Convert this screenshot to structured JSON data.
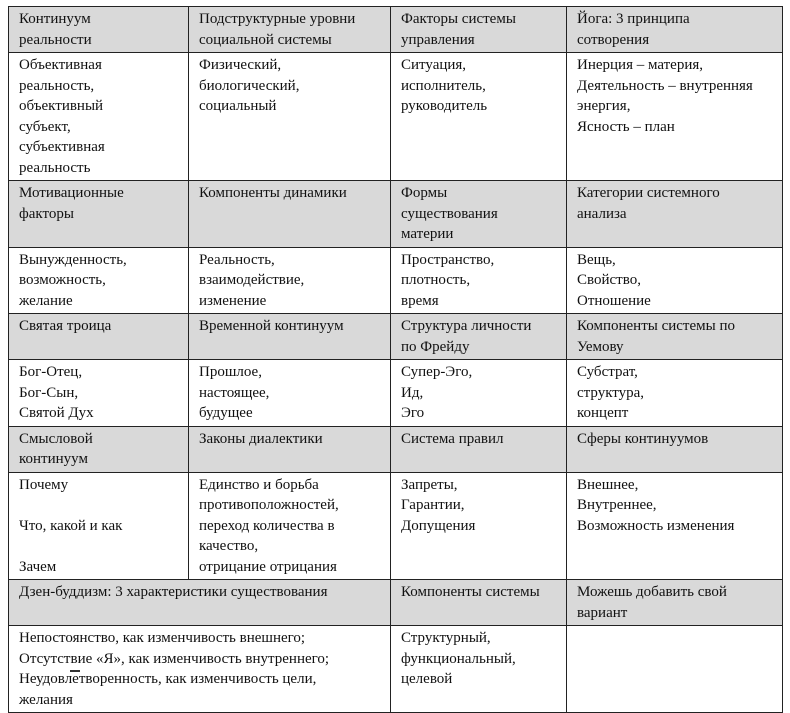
{
  "rows": [
    {
      "type": "header",
      "cells": [
        [
          "Континуум",
          "реальности"
        ],
        [
          "Подструктурные уровни",
          "социальной системы"
        ],
        [
          "Факторы системы",
          "управления"
        ],
        [
          "Йога: 3 принципа",
          "сотворения"
        ]
      ]
    },
    {
      "type": "body",
      "cells": [
        [
          "Объективная",
          "реальность,",
          "объективный",
          "субъект,",
          "субъективная",
          "реальность"
        ],
        [
          "Физический,",
          "биологический,",
          "социальный"
        ],
        [
          "Ситуация,",
          "исполнитель,",
          "руководитель"
        ],
        [
          "Инерция – материя,",
          "Деятельность – внутренняя",
          "энергия,",
          "Ясность – план"
        ]
      ]
    },
    {
      "type": "header",
      "cells": [
        [
          "Мотивационные",
          "факторы"
        ],
        [
          "Компоненты динамики"
        ],
        [
          "Формы",
          "существования",
          "материи"
        ],
        [
          "Категории системного",
          "анализа"
        ]
      ]
    },
    {
      "type": "body",
      "cells": [
        [
          "Вынужденность,",
          "возможность,",
          "желание"
        ],
        [
          "Реальность,",
          "взаимодействие,",
          "изменение"
        ],
        [
          "Пространство,",
          "плотность,",
          "время"
        ],
        [
          "Вещь,",
          "Свойство,",
          "Отношение"
        ]
      ]
    },
    {
      "type": "header",
      "cells": [
        [
          "Святая троица"
        ],
        [
          "Временной континуум"
        ],
        [
          "Структура личности",
          "по Фрейду"
        ],
        [
          "Компоненты системы по",
          "Уемову"
        ]
      ]
    },
    {
      "type": "body",
      "cells": [
        [
          "Бог-Отец,",
          "Бог-Сын,",
          "Святой Дух"
        ],
        [
          "Прошлое,",
          "настоящее,",
          "будущее"
        ],
        [
          "Супер-Эго,",
          "Ид,",
          "Эго"
        ],
        [
          "Субстрат,",
          "структура,",
          "концепт"
        ]
      ]
    },
    {
      "type": "header",
      "cells": [
        [
          "Смысловой",
          "континуум"
        ],
        [
          "Законы диалектики"
        ],
        [
          "Система правил"
        ],
        [
          "Сферы континуумов"
        ]
      ]
    },
    {
      "type": "body",
      "cells": [
        [
          "Почему",
          "",
          "Что, какой и как",
          "",
          "Зачем"
        ],
        [
          "Единство и борьба",
          "противоположностей,",
          "переход количества в",
          "качество,",
          "отрицание отрицания"
        ],
        [
          "Запреты,",
          "Гарантии,",
          "Допущения"
        ],
        [
          "Внешнее,",
          "Внутреннее,",
          "Возможность изменения"
        ]
      ]
    }
  ],
  "last_header": {
    "cells": [
      [
        "Дзен-буддизм: 3 характеристики существования"
      ],
      [
        "Компоненты системы"
      ],
      [
        "Можешь добавить свой",
        "вариант"
      ]
    ]
  },
  "last_body": {
    "cells": [
      [
        "Непостоянство, как изменчивость внешнего;",
        "Отсутствие «Я», как изменчивость внутреннего;",
        "Неудовлетворенность, как изменчивость цели,",
        "желания"
      ],
      [
        "Структурный,",
        "функциональный,",
        "целевой"
      ],
      []
    ]
  }
}
